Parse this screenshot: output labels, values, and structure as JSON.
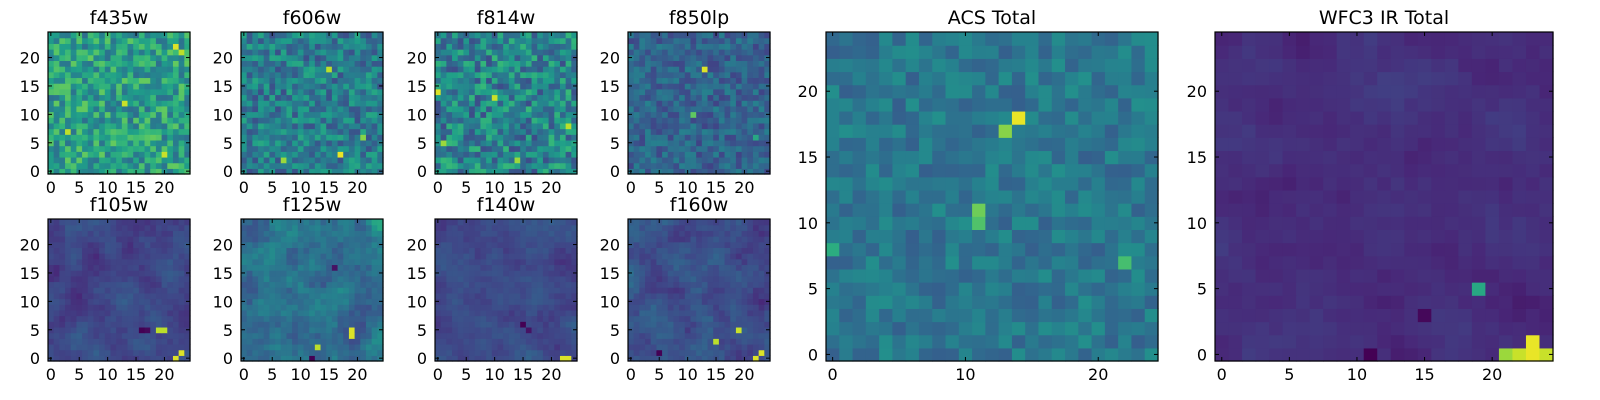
{
  "figure": {
    "colormap": "viridis",
    "colors": {
      "background": "#ffffff",
      "frame": "#000000"
    }
  },
  "chart_data": [
    {
      "type": "heatmap",
      "title": "f435w",
      "grid_size": 25,
      "xlim": [
        -0.5,
        24.5
      ],
      "ylim": [
        -0.5,
        24.5
      ],
      "xticks": [
        "0",
        "5",
        "10",
        "15",
        "20"
      ],
      "yticks": [
        "0",
        "5",
        "10",
        "15",
        "20"
      ],
      "texture": "noisy",
      "mean": 0.56,
      "spread": 0.2,
      "hotspots": [
        {
          "x": 22,
          "y": 22,
          "v": 0.95
        },
        {
          "x": 23,
          "y": 21,
          "v": 0.9
        },
        {
          "x": 3,
          "y": 7,
          "v": 0.9
        },
        {
          "x": 13,
          "y": 12,
          "v": 0.92
        },
        {
          "x": 20,
          "y": 3,
          "v": 0.92
        }
      ]
    },
    {
      "type": "heatmap",
      "title": "f606w",
      "grid_size": 25,
      "xlim": [
        -0.5,
        24.5
      ],
      "ylim": [
        -0.5,
        24.5
      ],
      "xticks": [
        "0",
        "5",
        "10",
        "15",
        "20"
      ],
      "yticks": [
        "0",
        "5",
        "10",
        "15",
        "20"
      ],
      "texture": "noisy",
      "mean": 0.42,
      "spread": 0.18,
      "hotspots": [
        {
          "x": 15,
          "y": 18,
          "v": 0.9
        },
        {
          "x": 17,
          "y": 3,
          "v": 0.97
        },
        {
          "x": 21,
          "y": 6,
          "v": 0.82
        },
        {
          "x": 7,
          "y": 2,
          "v": 0.85
        }
      ]
    },
    {
      "type": "heatmap",
      "title": "f814w",
      "grid_size": 25,
      "xlim": [
        -0.5,
        24.5
      ],
      "ylim": [
        -0.5,
        24.5
      ],
      "xticks": [
        "0",
        "5",
        "10",
        "15",
        "20"
      ],
      "yticks": [
        "0",
        "5",
        "10",
        "15",
        "20"
      ],
      "texture": "noisy",
      "mean": 0.45,
      "spread": 0.22,
      "hotspots": [
        {
          "x": 0,
          "y": 14,
          "v": 0.95
        },
        {
          "x": 10,
          "y": 13,
          "v": 0.92
        },
        {
          "x": 23,
          "y": 8,
          "v": 0.9
        },
        {
          "x": 14,
          "y": 2,
          "v": 0.85
        },
        {
          "x": 1,
          "y": 5,
          "v": 0.85
        }
      ]
    },
    {
      "type": "heatmap",
      "title": "f850lp",
      "grid_size": 25,
      "xlim": [
        -0.5,
        24.5
      ],
      "ylim": [
        -0.5,
        24.5
      ],
      "xticks": [
        "0",
        "5",
        "10",
        "15",
        "20"
      ],
      "yticks": [
        "0",
        "5",
        "10",
        "15",
        "20"
      ],
      "texture": "noisy",
      "mean": 0.32,
      "spread": 0.12,
      "hotspots": [
        {
          "x": 13,
          "y": 18,
          "v": 0.95
        },
        {
          "x": 11,
          "y": 10,
          "v": 0.75
        },
        {
          "x": 22,
          "y": 6,
          "v": 0.6
        }
      ]
    },
    {
      "type": "heatmap",
      "title": "f105w",
      "grid_size": 25,
      "xlim": [
        -0.5,
        24.5
      ],
      "ylim": [
        -0.5,
        24.5
      ],
      "xticks": [
        "0",
        "5",
        "10",
        "15",
        "20"
      ],
      "yticks": [
        "0",
        "5",
        "10",
        "15",
        "20"
      ],
      "texture": "smooth",
      "mean": 0.22,
      "spread": 0.08,
      "hotspots": [
        {
          "x": 22,
          "y": 0,
          "v": 0.95
        },
        {
          "x": 23,
          "y": 1,
          "v": 0.95
        },
        {
          "x": 19,
          "y": 5,
          "v": 0.9
        },
        {
          "x": 20,
          "y": 5,
          "v": 0.9
        },
        {
          "x": 16,
          "y": 5,
          "v": 0.0
        },
        {
          "x": 17,
          "y": 5,
          "v": 0.02
        }
      ]
    },
    {
      "type": "heatmap",
      "title": "f125w",
      "grid_size": 25,
      "xlim": [
        -0.5,
        24.5
      ],
      "ylim": [
        -0.5,
        24.5
      ],
      "xticks": [
        "0",
        "5",
        "10",
        "15",
        "20"
      ],
      "yticks": [
        "0",
        "5",
        "10",
        "15",
        "20"
      ],
      "texture": "smooth",
      "mean": 0.38,
      "spread": 0.14,
      "hotspots": [
        {
          "x": 19,
          "y": 4,
          "v": 0.95
        },
        {
          "x": 19,
          "y": 5,
          "v": 0.95
        },
        {
          "x": 13,
          "y": 2,
          "v": 0.9
        },
        {
          "x": 12,
          "y": 0,
          "v": 0.0
        },
        {
          "x": 16,
          "y": 16,
          "v": 0.05
        }
      ]
    },
    {
      "type": "heatmap",
      "title": "f140w",
      "grid_size": 25,
      "xlim": [
        -0.5,
        24.5
      ],
      "ylim": [
        -0.5,
        24.5
      ],
      "xticks": [
        "0",
        "5",
        "10",
        "15",
        "20"
      ],
      "yticks": [
        "0",
        "5",
        "10",
        "15",
        "20"
      ],
      "texture": "smooth",
      "mean": 0.22,
      "spread": 0.07,
      "hotspots": [
        {
          "x": 22,
          "y": 0,
          "v": 0.95
        },
        {
          "x": 23,
          "y": 0,
          "v": 0.95
        },
        {
          "x": 15,
          "y": 6,
          "v": 0.0
        },
        {
          "x": 16,
          "y": 5,
          "v": 0.05
        }
      ]
    },
    {
      "type": "heatmap",
      "title": "f160w",
      "grid_size": 25,
      "xlim": [
        -0.5,
        24.5
      ],
      "ylim": [
        -0.5,
        24.5
      ],
      "xticks": [
        "0",
        "5",
        "10",
        "15",
        "20"
      ],
      "yticks": [
        "0",
        "5",
        "10",
        "15",
        "20"
      ],
      "texture": "smooth",
      "mean": 0.24,
      "spread": 0.1,
      "hotspots": [
        {
          "x": 22,
          "y": 0,
          "v": 0.95
        },
        {
          "x": 23,
          "y": 1,
          "v": 0.95
        },
        {
          "x": 15,
          "y": 3,
          "v": 0.9
        },
        {
          "x": 19,
          "y": 5,
          "v": 0.92
        },
        {
          "x": 5,
          "y": 1,
          "v": 0.0
        }
      ]
    },
    {
      "type": "heatmap",
      "title": "ACS Total",
      "grid_size": 25,
      "xlim": [
        -0.5,
        24.5
      ],
      "ylim": [
        -0.5,
        24.5
      ],
      "xticks": [
        "0",
        "10",
        "20"
      ],
      "yticks": [
        "0",
        "5",
        "10",
        "15",
        "20"
      ],
      "texture": "noisy",
      "mean": 0.4,
      "spread": 0.1,
      "hotspots": [
        {
          "x": 14,
          "y": 18,
          "v": 0.97
        },
        {
          "x": 13,
          "y": 17,
          "v": 0.82
        },
        {
          "x": 11,
          "y": 11,
          "v": 0.78
        },
        {
          "x": 11,
          "y": 10,
          "v": 0.72
        },
        {
          "x": 22,
          "y": 7,
          "v": 0.7
        },
        {
          "x": 0,
          "y": 8,
          "v": 0.62
        }
      ]
    },
    {
      "type": "heatmap",
      "title": "WFC3 IR Total",
      "grid_size": 25,
      "xlim": [
        -0.5,
        24.5
      ],
      "ylim": [
        -0.5,
        24.5
      ],
      "xticks": [
        "0",
        "5",
        "10",
        "15",
        "20"
      ],
      "yticks": [
        "0",
        "5",
        "10",
        "15",
        "20"
      ],
      "texture": "smooth",
      "mean": 0.14,
      "spread": 0.05,
      "hotspots": [
        {
          "x": 23,
          "y": 0,
          "v": 0.97
        },
        {
          "x": 23,
          "y": 1,
          "v": 0.97
        },
        {
          "x": 22,
          "y": 0,
          "v": 0.92
        },
        {
          "x": 24,
          "y": 0,
          "v": 0.92
        },
        {
          "x": 21,
          "y": 0,
          "v": 0.85
        },
        {
          "x": 19,
          "y": 5,
          "v": 0.6
        },
        {
          "x": 11,
          "y": 0,
          "v": 0.0
        },
        {
          "x": 15,
          "y": 3,
          "v": 0.02
        }
      ]
    }
  ]
}
